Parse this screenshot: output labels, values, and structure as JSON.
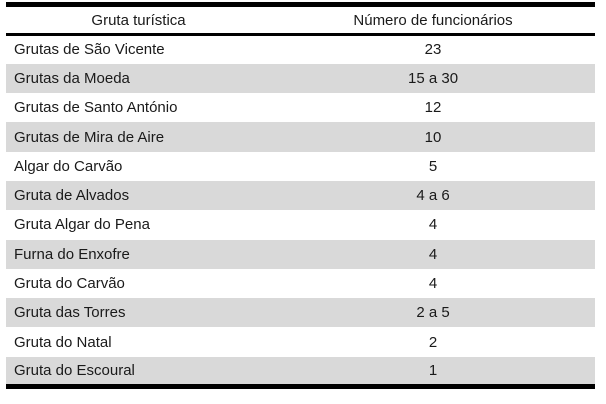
{
  "table": {
    "columns": [
      {
        "label": "Gruta turística"
      },
      {
        "label": "Número de funcionários"
      }
    ],
    "rows": [
      {
        "name": "Grutas de São Vicente",
        "value": "23"
      },
      {
        "name": "Grutas da Moeda",
        "value": "15 a 30"
      },
      {
        "name": "Grutas de Santo António",
        "value": "12"
      },
      {
        "name": "Grutas de Mira de Aire",
        "value": "10"
      },
      {
        "name": "Algar do Carvão",
        "value": "5"
      },
      {
        "name": "Gruta de Alvados",
        "value": "4 a 6"
      },
      {
        "name": "Gruta Algar do Pena",
        "value": "4"
      },
      {
        "name": "Furna do Enxofre",
        "value": "4"
      },
      {
        "name": "Gruta do Carvão",
        "value": "4"
      },
      {
        "name": "Gruta das Torres",
        "value": "2 a 5"
      },
      {
        "name": "Gruta do Natal",
        "value": "2"
      },
      {
        "name": "Gruta do Escoural",
        "value": "1"
      }
    ],
    "colors": {
      "stripe": "#d9d9d9",
      "border": "#000000",
      "text": "#1a1a1a",
      "background": "#ffffff"
    }
  }
}
